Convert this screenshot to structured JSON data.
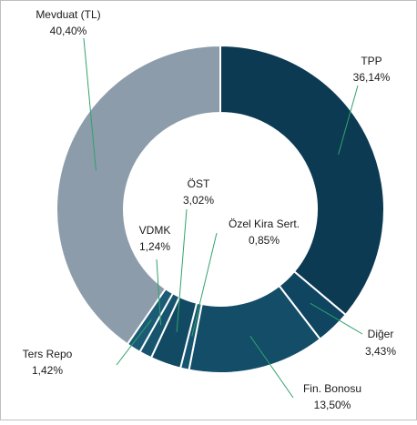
{
  "chart_data": {
    "type": "donut",
    "categories": [
      "TPP",
      "Diğer",
      "Fin. Bonosu",
      "Özel Kira Sert.",
      "ÖST",
      "VDMK",
      "Ters Repo",
      "Mevduat (TL)"
    ],
    "values": [
      36.14,
      3.43,
      13.5,
      0.85,
      3.02,
      1.24,
      1.42,
      40.4
    ],
    "value_labels": [
      "36,14%",
      "3,43%",
      "13,50%",
      "0,85%",
      "3,02%",
      "1,24%",
      "1,42%",
      "40,40%"
    ],
    "colors": [
      "#0c3a52",
      "#0f4560",
      "#134d68",
      "#165570",
      "#124a63",
      "#17556f",
      "#1b5b75",
      "#8c9cab"
    ]
  }
}
